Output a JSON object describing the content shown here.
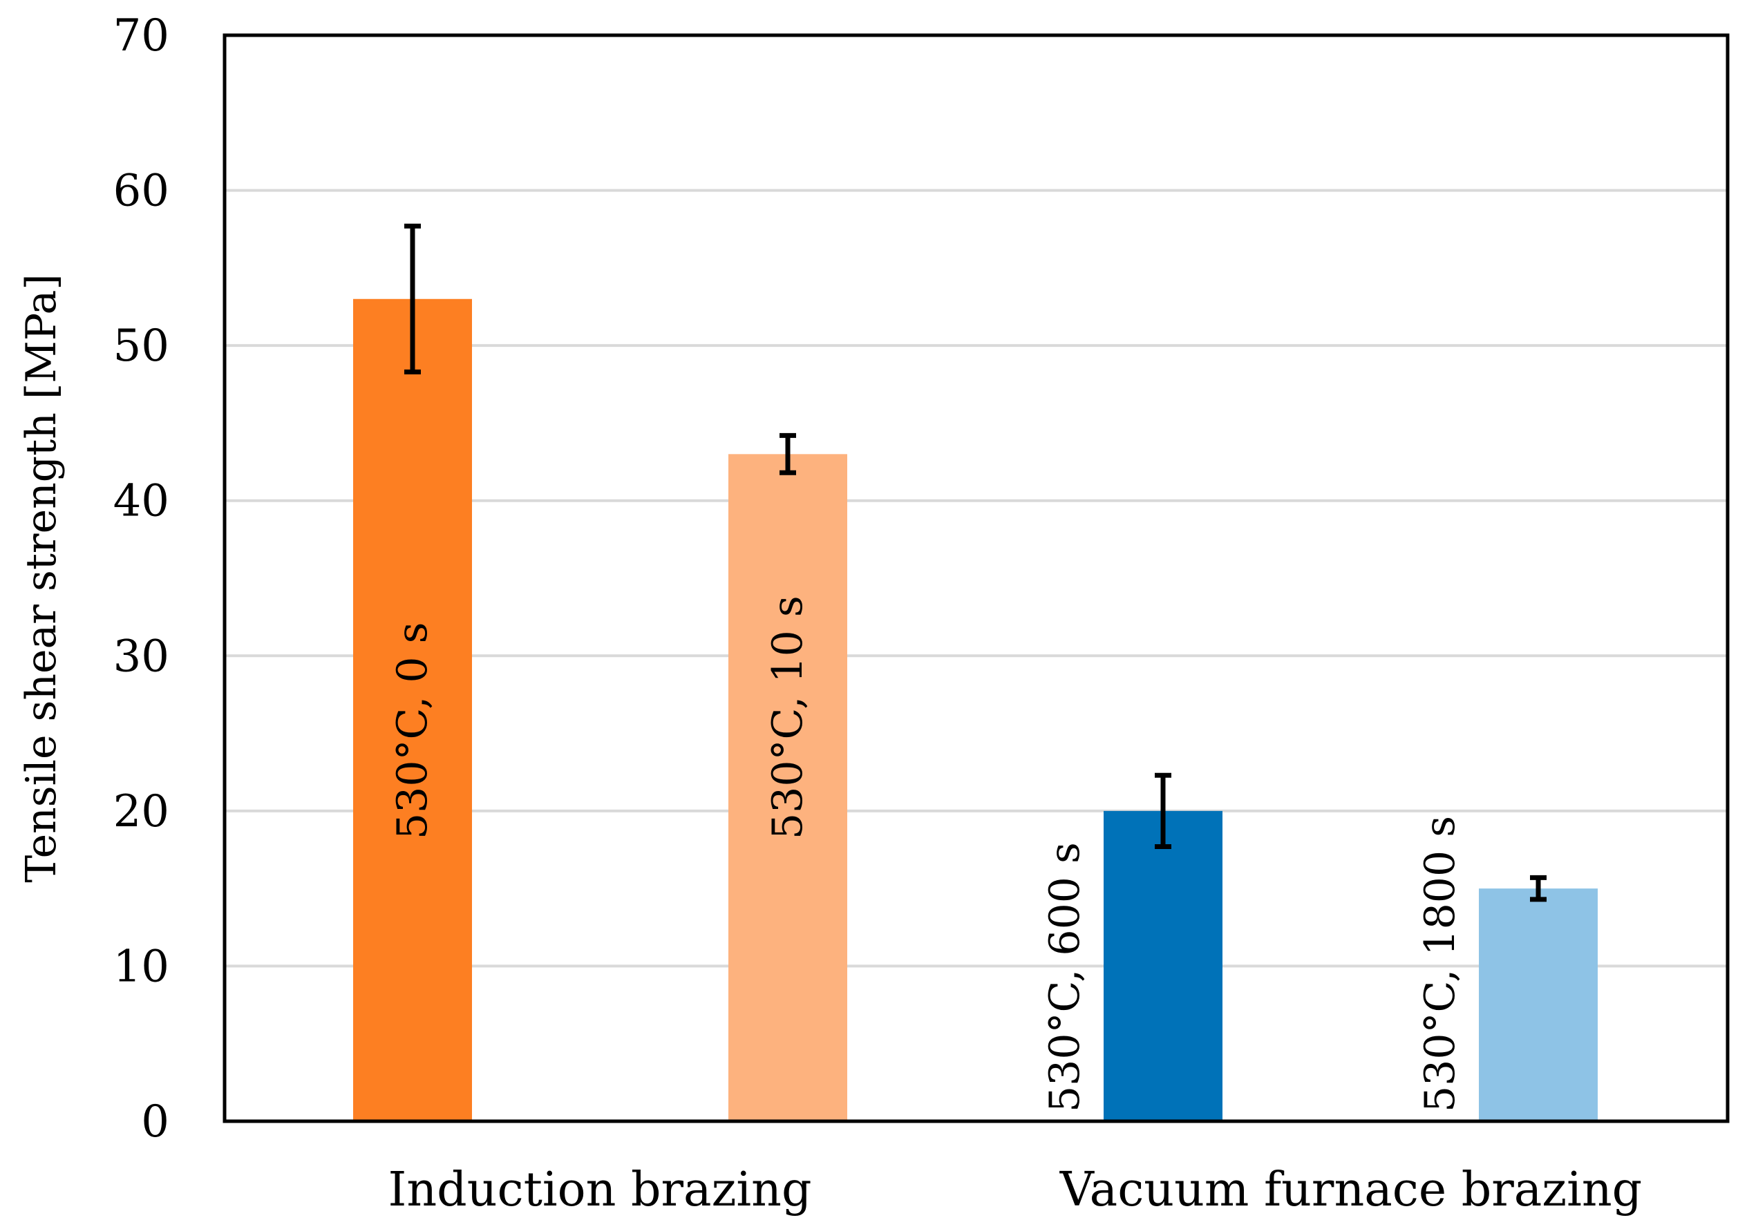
{
  "chart_data": {
    "type": "bar",
    "title": "",
    "xlabel": "",
    "ylabel": "Tensile shear strength [MPa]",
    "ylim": [
      0,
      70
    ],
    "yticks": [
      "0",
      "10",
      "20",
      "30",
      "40",
      "50",
      "60",
      "70"
    ],
    "grid": true,
    "groups": [
      "Induction brazing",
      "Vacuum furnace brazing"
    ],
    "bars": [
      {
        "label": "530°C, 0 s",
        "group": "Induction brazing",
        "value": 53,
        "error": 4.7,
        "color": "#fd7f22",
        "label_position": "inside"
      },
      {
        "label": "530°C, 10 s",
        "group": "Induction brazing",
        "value": 43,
        "error": 1.2,
        "color": "#fdb27e",
        "label_position": "inside"
      },
      {
        "label": "530°C, 600 s",
        "group": "Vacuum furnace brazing",
        "value": 20,
        "error": 2.3,
        "color": "#0072b8",
        "label_position": "left"
      },
      {
        "label": "530°C, 1800 s",
        "group": "Vacuum furnace brazing",
        "value": 15,
        "error": 0.7,
        "color": "#8ec3e6",
        "label_position": "left"
      }
    ]
  }
}
